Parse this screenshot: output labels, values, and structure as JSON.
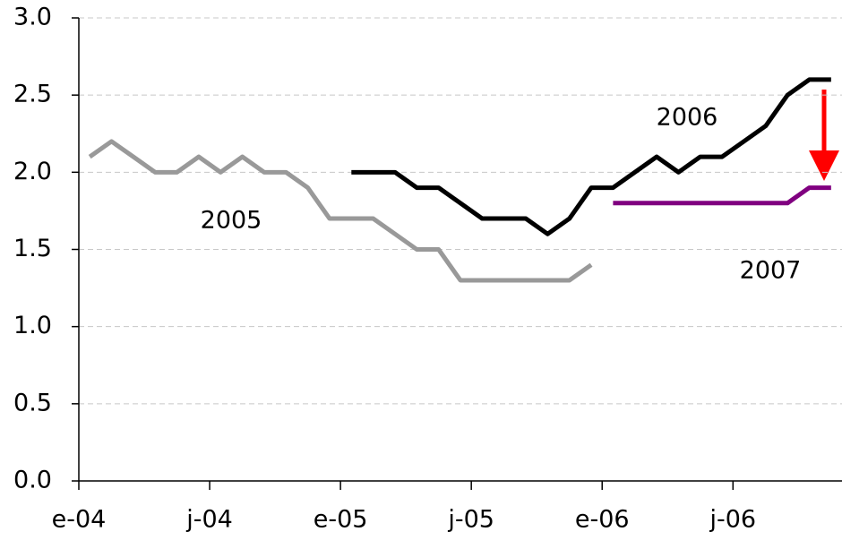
{
  "chart_data": {
    "type": "line",
    "categories": [
      "e-04",
      null,
      null,
      null,
      null,
      null,
      "j-04",
      null,
      null,
      null,
      null,
      null,
      "e-05",
      null,
      null,
      null,
      null,
      null,
      "j-05",
      null,
      null,
      null,
      null,
      null,
      "e-06",
      null,
      null,
      null,
      null,
      null,
      "j-06",
      null,
      null,
      null,
      null
    ],
    "series": [
      {
        "name": "2005",
        "color": "#999999",
        "values": [
          2.1,
          2.2,
          2.1,
          2.0,
          2.0,
          2.1,
          2.0,
          2.1,
          2.0,
          2.0,
          1.9,
          1.7,
          1.7,
          1.7,
          1.6,
          1.5,
          1.5,
          1.3,
          1.3,
          1.3,
          1.3,
          1.3,
          1.3,
          1.4,
          null,
          null,
          null,
          null,
          null,
          null,
          null,
          null,
          null,
          null,
          null
        ]
      },
      {
        "name": "2006",
        "color": "#000000",
        "values": [
          null,
          null,
          null,
          null,
          null,
          null,
          null,
          null,
          null,
          null,
          null,
          null,
          2.0,
          2.0,
          2.0,
          1.9,
          1.9,
          1.8,
          1.7,
          1.7,
          1.7,
          1.6,
          1.7,
          1.9,
          1.9,
          2.0,
          2.1,
          2.0,
          2.1,
          2.1,
          2.2,
          2.3,
          2.5,
          2.6,
          2.6
        ]
      },
      {
        "name": "2007",
        "color": "#800080",
        "values": [
          null,
          null,
          null,
          null,
          null,
          null,
          null,
          null,
          null,
          null,
          null,
          null,
          null,
          null,
          null,
          null,
          null,
          null,
          null,
          null,
          null,
          null,
          null,
          null,
          1.8,
          1.8,
          1.8,
          1.8,
          1.8,
          1.8,
          1.8,
          1.8,
          1.8,
          1.9,
          1.9
        ]
      }
    ],
    "ylim": [
      0,
      3
    ],
    "yticks": [
      {
        "value": 0,
        "label": "0.0"
      },
      0.5,
      {
        "value": 1,
        "label": "1.0"
      },
      1.5,
      {
        "value": 2,
        "label": "2.0"
      },
      2.5,
      {
        "value": 3,
        "label": "3.0"
      }
    ],
    "grid": true
  }
}
